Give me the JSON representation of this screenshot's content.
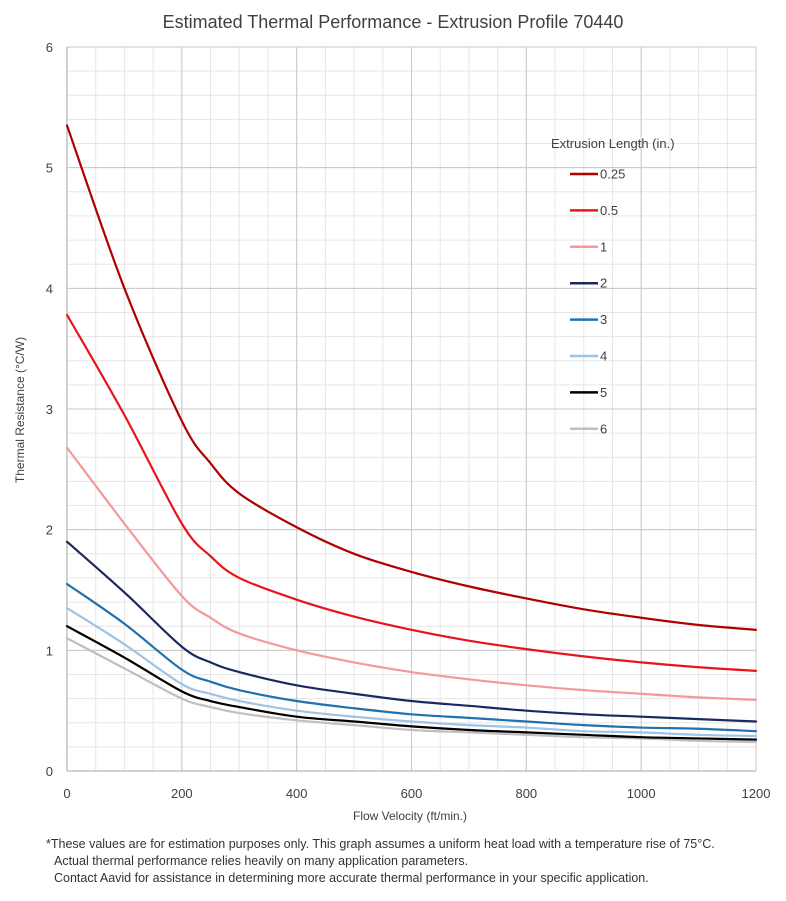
{
  "chart_data": {
    "type": "line",
    "title": "Estimated Thermal Performance - Extrusion Profile 70440",
    "xlabel": "Flow Velocity (ft/min.)",
    "ylabel": "Thermal Resistance (°C/W)",
    "xlim": [
      0,
      1200
    ],
    "ylim": [
      0,
      6
    ],
    "xticks": [
      0,
      200,
      400,
      600,
      800,
      1000,
      1200
    ],
    "yticks": [
      0,
      1,
      2,
      3,
      4,
      5,
      6
    ],
    "grid": true,
    "legend_title": "Extrusion Length (in.)",
    "legend_position": "upper-right",
    "x": [
      0,
      100,
      200,
      250,
      300,
      400,
      500,
      600,
      700,
      800,
      900,
      1000,
      1100,
      1200
    ],
    "series": [
      {
        "name": "0.25",
        "color": "#b00000",
        "values": [
          5.35,
          4.0,
          2.9,
          2.55,
          2.3,
          2.02,
          1.8,
          1.65,
          1.53,
          1.43,
          1.34,
          1.27,
          1.21,
          1.17
        ]
      },
      {
        "name": "0.5",
        "color": "#e8141b",
        "values": [
          3.78,
          2.95,
          2.05,
          1.78,
          1.6,
          1.42,
          1.28,
          1.17,
          1.08,
          1.01,
          0.95,
          0.9,
          0.86,
          0.83
        ]
      },
      {
        "name": "1",
        "color": "#f4999b",
        "values": [
          2.68,
          2.05,
          1.45,
          1.27,
          1.14,
          1.0,
          0.9,
          0.82,
          0.76,
          0.71,
          0.67,
          0.64,
          0.61,
          0.59
        ]
      },
      {
        "name": "2",
        "color": "#1b2a5e",
        "values": [
          1.9,
          1.48,
          1.03,
          0.9,
          0.82,
          0.71,
          0.64,
          0.58,
          0.54,
          0.5,
          0.47,
          0.45,
          0.43,
          0.41
        ]
      },
      {
        "name": "3",
        "color": "#1f72b0",
        "values": [
          1.55,
          1.22,
          0.84,
          0.74,
          0.67,
          0.58,
          0.52,
          0.47,
          0.44,
          0.41,
          0.38,
          0.36,
          0.35,
          0.33
        ]
      },
      {
        "name": "4",
        "color": "#9dc3e6",
        "values": [
          1.35,
          1.05,
          0.72,
          0.64,
          0.58,
          0.5,
          0.45,
          0.41,
          0.38,
          0.36,
          0.33,
          0.32,
          0.3,
          0.29
        ]
      },
      {
        "name": "5",
        "color": "#000000",
        "values": [
          1.2,
          0.94,
          0.66,
          0.58,
          0.53,
          0.45,
          0.41,
          0.37,
          0.34,
          0.32,
          0.3,
          0.28,
          0.27,
          0.26
        ]
      },
      {
        "name": "6",
        "color": "#bfbfbf",
        "values": [
          1.1,
          0.85,
          0.6,
          0.53,
          0.48,
          0.42,
          0.38,
          0.34,
          0.32,
          0.3,
          0.28,
          0.27,
          0.25,
          0.24
        ]
      }
    ]
  },
  "footnote": {
    "line1": "*These values are for estimation purposes only. This graph assumes a uniform heat load with a temperature rise of 75°C.",
    "line2": "Actual thermal performance relies heavily on many application parameters.",
    "line3": "Contact Aavid for assistance in determining more accurate thermal performance in your specific application."
  }
}
